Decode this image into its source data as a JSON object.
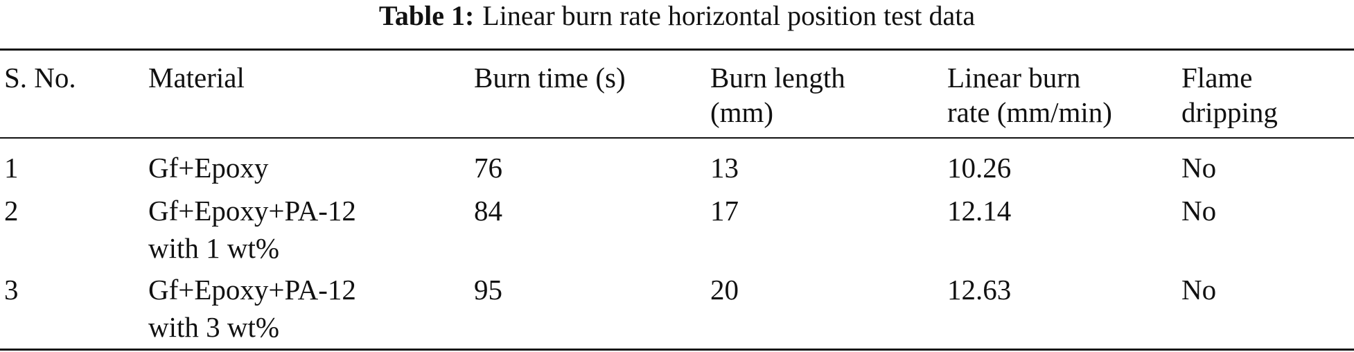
{
  "title": {
    "label": "Table 1:",
    "text": "Linear burn rate horizontal position test data"
  },
  "table": {
    "header": [
      [
        "S. No."
      ],
      [
        "Material"
      ],
      [
        "Burn time (s)"
      ],
      [
        "Burn length",
        "(mm)"
      ],
      [
        "Linear burn",
        "rate (mm/min)"
      ],
      [
        "Flame",
        "dripping"
      ]
    ],
    "rows": [
      [
        [
          "1"
        ],
        [
          "Gf+Epoxy"
        ],
        [
          "76"
        ],
        [
          "13"
        ],
        [
          "10.26"
        ],
        [
          "No"
        ]
      ],
      [
        [
          "2"
        ],
        [
          "Gf+Epoxy+PA-12",
          "with 1 wt%"
        ],
        [
          "84"
        ],
        [
          "17"
        ],
        [
          "12.14"
        ],
        [
          "No"
        ]
      ],
      [
        [
          "3"
        ],
        [
          "Gf+Epoxy+PA-12",
          "with 3 wt%"
        ],
        [
          "95"
        ],
        [
          "20"
        ],
        [
          "12.63"
        ],
        [
          "No"
        ]
      ]
    ]
  }
}
